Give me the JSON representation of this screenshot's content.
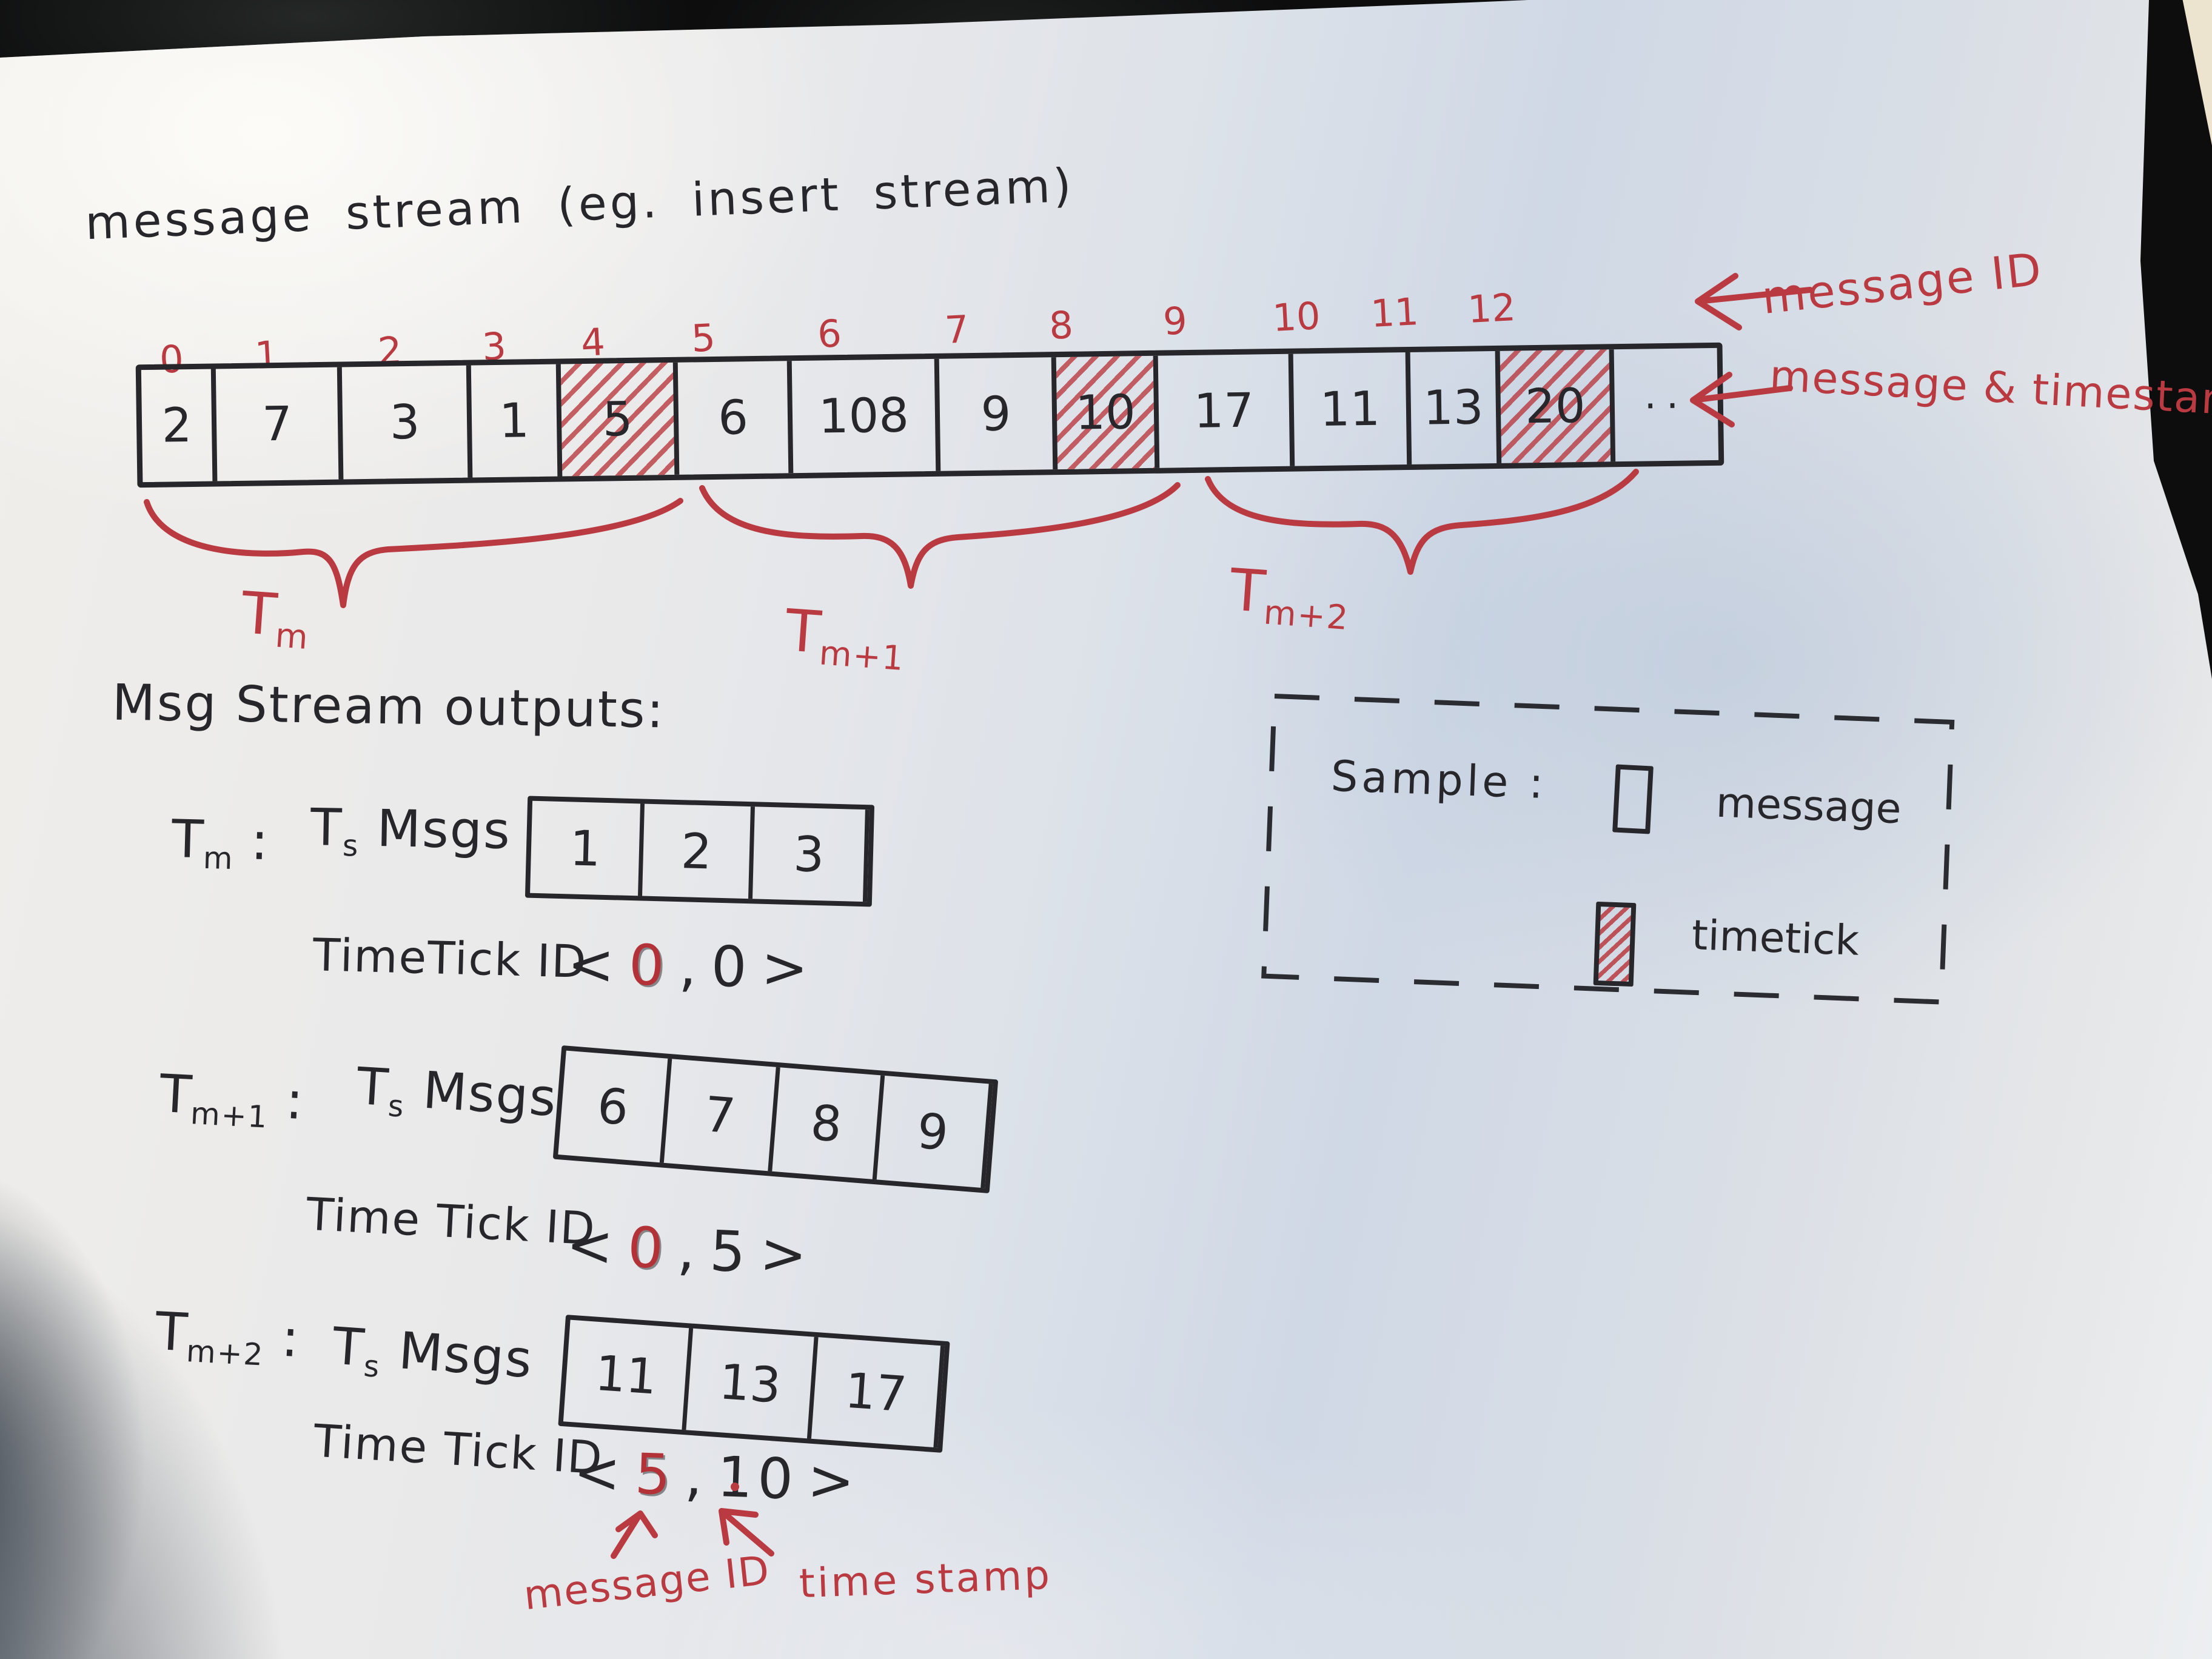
{
  "title": "message stream (eg. insert stream)",
  "stream": {
    "indices": [
      "0",
      "1",
      "2",
      "3",
      "4",
      "5",
      "6",
      "7",
      "8",
      "9",
      "10",
      "11",
      "12"
    ],
    "cells": [
      {
        "value": "2",
        "tick": false
      },
      {
        "value": "7",
        "tick": false
      },
      {
        "value": "3",
        "tick": false
      },
      {
        "value": "1",
        "tick": false
      },
      {
        "value": "5",
        "tick": true
      },
      {
        "value": "6",
        "tick": false
      },
      {
        "value": "108",
        "tick": false
      },
      {
        "value": "9",
        "tick": false
      },
      {
        "value": "10",
        "tick": true
      },
      {
        "value": "17",
        "tick": false
      },
      {
        "value": "11",
        "tick": false
      },
      {
        "value": "13",
        "tick": false
      },
      {
        "value": "20",
        "tick": true
      },
      {
        "value": "..",
        "tick": false
      }
    ],
    "arrow_top": "message ID",
    "arrow_bottom": "message & timestamp",
    "braces": [
      {
        "base": "T",
        "sub": "m"
      },
      {
        "base": "T",
        "sub": "m+1"
      },
      {
        "base": "T",
        "sub": "m+2"
      }
    ]
  },
  "outputs": {
    "heading": "Msg Stream outputs:",
    "rows": [
      {
        "name_base": "T",
        "name_sub": "m",
        "sep": " :",
        "msgs_base": "T",
        "msgs_sub": "s",
        "msgs_rest": " Msgs",
        "cells": [
          "1",
          "2",
          "3"
        ],
        "ticklabel": "TimeTick ID",
        "tuple": {
          "open": "<",
          "id": "0",
          "comma": ",",
          "ts": "0",
          "close": ">"
        }
      },
      {
        "name_base": "T",
        "name_sub": "m+1",
        "sep": " :",
        "msgs_base": "T",
        "msgs_sub": "s",
        "msgs_rest": " Msgs",
        "cells": [
          "6",
          "7",
          "8",
          "9"
        ],
        "ticklabel": "Time Tick ID",
        "tuple": {
          "open": "<",
          "id": "0",
          "comma": ",",
          "ts": "5",
          "close": ">"
        }
      },
      {
        "name_base": "T",
        "name_sub": "m+2",
        "sep": " :",
        "msgs_base": "T",
        "msgs_sub": "s",
        "msgs_rest": " Msgs",
        "cells": [
          "11",
          "13",
          "17"
        ],
        "ticklabel": "Time Tick ID",
        "tuple": {
          "open": "<",
          "id": "5",
          "comma": ",",
          "ts": "10",
          "close": ">"
        }
      }
    ],
    "annotations": {
      "id_label": "message ID",
      "ts_label": "time stamp"
    }
  },
  "legend": {
    "title": "Sample :",
    "items": [
      {
        "label": "message",
        "type": "message"
      },
      {
        "label": "timetick",
        "type": "timetick"
      }
    ]
  },
  "colors": {
    "ink": "#26262b",
    "red": "#b93a40",
    "paper": "#e7e9ec",
    "background": "#0d0d0e"
  }
}
